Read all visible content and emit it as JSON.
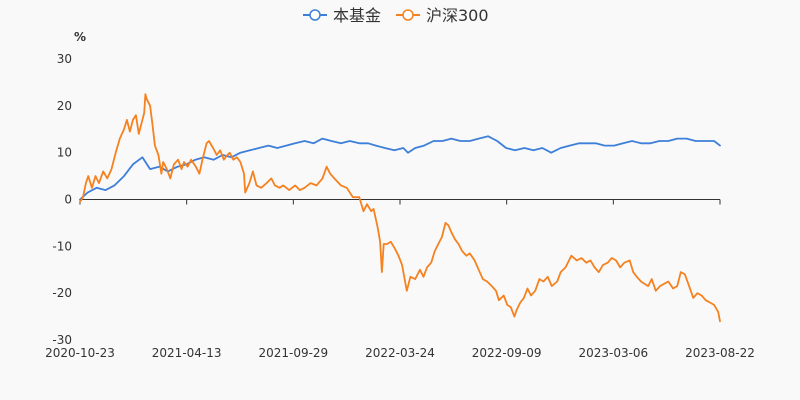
{
  "chart_data": {
    "type": "line",
    "title": "",
    "unit": "%",
    "ylim": [
      -30,
      30
    ],
    "yticks": [
      30,
      20,
      10,
      0,
      -10,
      -20,
      -30
    ],
    "xticks": [
      "2020-10-23",
      "2021-04-13",
      "2021-09-29",
      "2022-03-24",
      "2022-09-09",
      "2023-03-06",
      "2023-08-22"
    ],
    "legend_position": "top-center",
    "series": [
      {
        "name": "本基金",
        "color": "#3d7fd9",
        "points": [
          [
            "2020-10-23",
            0
          ],
          [
            "2020-11-05",
            1.5
          ],
          [
            "2020-11-20",
            2.5
          ],
          [
            "2020-12-05",
            2.0
          ],
          [
            "2020-12-20",
            3.0
          ],
          [
            "2021-01-05",
            5.0
          ],
          [
            "2021-01-20",
            7.5
          ],
          [
            "2021-02-05",
            9.0
          ],
          [
            "2021-02-18",
            6.5
          ],
          [
            "2021-03-05",
            7.0
          ],
          [
            "2021-03-20",
            6.0
          ],
          [
            "2021-04-05",
            7.0
          ],
          [
            "2021-04-20",
            7.5
          ],
          [
            "2021-05-05",
            8.5
          ],
          [
            "2021-05-20",
            9.0
          ],
          [
            "2021-06-05",
            8.5
          ],
          [
            "2021-06-20",
            9.5
          ],
          [
            "2021-07-05",
            9.0
          ],
          [
            "2021-07-20",
            10.0
          ],
          [
            "2021-08-05",
            10.5
          ],
          [
            "2021-08-20",
            11.0
          ],
          [
            "2021-09-05",
            11.5
          ],
          [
            "2021-09-20",
            11.0
          ],
          [
            "2021-10-05",
            11.5
          ],
          [
            "2021-10-20",
            12.0
          ],
          [
            "2021-11-05",
            12.5
          ],
          [
            "2021-11-20",
            12.0
          ],
          [
            "2021-12-05",
            13.0
          ],
          [
            "2021-12-20",
            12.5
          ],
          [
            "2022-01-05",
            12.0
          ],
          [
            "2022-01-20",
            12.5
          ],
          [
            "2022-02-05",
            12.0
          ],
          [
            "2022-02-20",
            12.0
          ],
          [
            "2022-03-05",
            11.5
          ],
          [
            "2022-03-20",
            11.0
          ],
          [
            "2022-04-05",
            10.5
          ],
          [
            "2022-04-20",
            11.0
          ],
          [
            "2022-04-28",
            10.0
          ],
          [
            "2022-05-10",
            11.0
          ],
          [
            "2022-05-25",
            11.5
          ],
          [
            "2022-06-10",
            12.5
          ],
          [
            "2022-06-25",
            12.5
          ],
          [
            "2022-07-10",
            13.0
          ],
          [
            "2022-07-25",
            12.5
          ],
          [
            "2022-08-10",
            12.5
          ],
          [
            "2022-08-25",
            13.0
          ],
          [
            "2022-09-10",
            13.5
          ],
          [
            "2022-09-25",
            12.5
          ],
          [
            "2022-10-10",
            11.0
          ],
          [
            "2022-10-25",
            10.5
          ],
          [
            "2022-11-10",
            11.0
          ],
          [
            "2022-11-25",
            10.5
          ],
          [
            "2022-12-10",
            11.0
          ],
          [
            "2022-12-25",
            10.0
          ],
          [
            "2023-01-10",
            11.0
          ],
          [
            "2023-01-25",
            11.5
          ],
          [
            "2023-02-10",
            12.0
          ],
          [
            "2023-02-25",
            12.0
          ],
          [
            "2023-03-10",
            12.0
          ],
          [
            "2023-03-25",
            11.5
          ],
          [
            "2023-04-10",
            11.5
          ],
          [
            "2023-04-25",
            12.0
          ],
          [
            "2023-05-10",
            12.5
          ],
          [
            "2023-05-25",
            12.0
          ],
          [
            "2023-06-10",
            12.0
          ],
          [
            "2023-06-25",
            12.5
          ],
          [
            "2023-07-10",
            12.5
          ],
          [
            "2023-07-25",
            13.0
          ],
          [
            "2023-08-10",
            13.0
          ],
          [
            "2023-08-25",
            12.5
          ],
          [
            "2023-09-10",
            12.5
          ],
          [
            "2023-09-25",
            12.5
          ],
          [
            "2023-10-05",
            11.5
          ]
        ]
      },
      {
        "name": "沪深300",
        "color": "#f5811f",
        "points": [
          [
            "2020-10-23",
            -0.5
          ],
          [
            "2020-10-28",
            0.5
          ],
          [
            "2020-11-02",
            3.5
          ],
          [
            "2020-11-06",
            5.0
          ],
          [
            "2020-11-12",
            2.5
          ],
          [
            "2020-11-18",
            5.0
          ],
          [
            "2020-11-24",
            3.5
          ],
          [
            "2020-12-01",
            6.0
          ],
          [
            "2020-12-08",
            4.5
          ],
          [
            "2020-12-15",
            6.5
          ],
          [
            "2020-12-22",
            10.0
          ],
          [
            "2020-12-29",
            13.0
          ],
          [
            "2021-01-05",
            15.0
          ],
          [
            "2021-01-10",
            17.0
          ],
          [
            "2021-01-15",
            14.5
          ],
          [
            "2021-01-20",
            17.0
          ],
          [
            "2021-01-25",
            18.0
          ],
          [
            "2021-01-30",
            14.0
          ],
          [
            "2021-02-04",
            16.5
          ],
          [
            "2021-02-08",
            18.5
          ],
          [
            "2021-02-10",
            22.5
          ],
          [
            "2021-02-12",
            21.5
          ],
          [
            "2021-02-18",
            20.0
          ],
          [
            "2021-02-22",
            16.0
          ],
          [
            "2021-02-26",
            11.5
          ],
          [
            "2021-03-04",
            9.5
          ],
          [
            "2021-03-09",
            5.5
          ],
          [
            "2021-03-12",
            8.0
          ],
          [
            "2021-03-18",
            6.5
          ],
          [
            "2021-03-24",
            4.5
          ],
          [
            "2021-03-30",
            7.5
          ],
          [
            "2021-04-06",
            8.5
          ],
          [
            "2021-04-12",
            6.5
          ],
          [
            "2021-04-16",
            8.0
          ],
          [
            "2021-04-22",
            7.0
          ],
          [
            "2021-04-28",
            8.5
          ],
          [
            "2021-05-06",
            7.0
          ],
          [
            "2021-05-12",
            5.5
          ],
          [
            "2021-05-18",
            9.0
          ],
          [
            "2021-05-24",
            12.0
          ],
          [
            "2021-05-28",
            12.5
          ],
          [
            "2021-06-04",
            11.0
          ],
          [
            "2021-06-10",
            9.5
          ],
          [
            "2021-06-16",
            10.5
          ],
          [
            "2021-06-22",
            8.5
          ],
          [
            "2021-06-28",
            9.5
          ],
          [
            "2021-07-02",
            10.0
          ],
          [
            "2021-07-08",
            8.5
          ],
          [
            "2021-07-14",
            9.0
          ],
          [
            "2021-07-20",
            8.0
          ],
          [
            "2021-07-26",
            5.5
          ],
          [
            "2021-07-28",
            1.5
          ],
          [
            "2021-08-04",
            3.5
          ],
          [
            "2021-08-10",
            6.0
          ],
          [
            "2021-08-16",
            3.0
          ],
          [
            "2021-08-24",
            2.5
          ],
          [
            "2021-09-02",
            3.5
          ],
          [
            "2021-09-10",
            4.5
          ],
          [
            "2021-09-16",
            3.0
          ],
          [
            "2021-09-24",
            2.5
          ],
          [
            "2021-09-30",
            3.0
          ],
          [
            "2021-10-10",
            2.0
          ],
          [
            "2021-10-20",
            3.0
          ],
          [
            "2021-10-28",
            2.0
          ],
          [
            "2021-11-05",
            2.5
          ],
          [
            "2021-11-15",
            3.5
          ],
          [
            "2021-11-25",
            3.0
          ],
          [
            "2021-12-05",
            4.5
          ],
          [
            "2021-12-12",
            7.0
          ],
          [
            "2021-12-18",
            5.5
          ],
          [
            "2021-12-25",
            4.5
          ],
          [
            "2022-01-05",
            3.0
          ],
          [
            "2022-01-15",
            2.5
          ],
          [
            "2022-01-25",
            0.5
          ],
          [
            "2022-02-05",
            0.5
          ],
          [
            "2022-02-12",
            -2.5
          ],
          [
            "2022-02-18",
            -1.0
          ],
          [
            "2022-02-25",
            -2.5
          ],
          [
            "2022-03-01",
            -2.0
          ],
          [
            "2022-03-08",
            -6.0
          ],
          [
            "2022-03-12",
            -9.0
          ],
          [
            "2022-03-15",
            -15.5
          ],
          [
            "2022-03-18",
            -9.5
          ],
          [
            "2022-03-24",
            -9.5
          ],
          [
            "2022-03-30",
            -9.0
          ],
          [
            "2022-04-06",
            -10.5
          ],
          [
            "2022-04-12",
            -12.0
          ],
          [
            "2022-04-18",
            -14.0
          ],
          [
            "2022-04-26",
            -19.5
          ],
          [
            "2022-05-02",
            -16.5
          ],
          [
            "2022-05-10",
            -17.0
          ],
          [
            "2022-05-18",
            -15.0
          ],
          [
            "2022-05-24",
            -16.5
          ],
          [
            "2022-05-30",
            -14.5
          ],
          [
            "2022-06-06",
            -13.5
          ],
          [
            "2022-06-12",
            -11.0
          ],
          [
            "2022-06-18",
            -9.5
          ],
          [
            "2022-06-24",
            -8.0
          ],
          [
            "2022-06-30",
            -5.0
          ],
          [
            "2022-07-05",
            -5.5
          ],
          [
            "2022-07-10",
            -7.0
          ],
          [
            "2022-07-16",
            -8.5
          ],
          [
            "2022-07-22",
            -9.5
          ],
          [
            "2022-07-28",
            -11.0
          ],
          [
            "2022-08-04",
            -12.0
          ],
          [
            "2022-08-10",
            -11.5
          ],
          [
            "2022-08-18",
            -13.0
          ],
          [
            "2022-08-25",
            -15.0
          ],
          [
            "2022-09-01",
            -17.0
          ],
          [
            "2022-09-08",
            -17.5
          ],
          [
            "2022-09-16",
            -18.5
          ],
          [
            "2022-09-23",
            -19.5
          ],
          [
            "2022-09-28",
            -21.5
          ],
          [
            "2022-10-06",
            -20.5
          ],
          [
            "2022-10-12",
            -22.5
          ],
          [
            "2022-10-18",
            -23.0
          ],
          [
            "2022-10-24",
            -25.0
          ],
          [
            "2022-10-28",
            -23.5
          ],
          [
            "2022-11-03",
            -22.0
          ],
          [
            "2022-11-09",
            -21.0
          ],
          [
            "2022-11-15",
            -19.0
          ],
          [
            "2022-11-21",
            -20.5
          ],
          [
            "2022-11-28",
            -19.5
          ],
          [
            "2022-12-05",
            -17.0
          ],
          [
            "2022-12-12",
            -17.5
          ],
          [
            "2022-12-19",
            -16.5
          ],
          [
            "2022-12-26",
            -18.5
          ],
          [
            "2023-01-04",
            -17.5
          ],
          [
            "2023-01-10",
            -15.5
          ],
          [
            "2023-01-18",
            -14.5
          ],
          [
            "2023-01-28",
            -12.0
          ],
          [
            "2023-02-06",
            -13.0
          ],
          [
            "2023-02-14",
            -12.5
          ],
          [
            "2023-02-22",
            -13.5
          ],
          [
            "2023-03-01",
            -13.0
          ],
          [
            "2023-03-08",
            -14.5
          ],
          [
            "2023-03-15",
            -15.5
          ],
          [
            "2023-03-22",
            -14.0
          ],
          [
            "2023-03-30",
            -13.5
          ],
          [
            "2023-04-06",
            -12.5
          ],
          [
            "2023-04-13",
            -13.0
          ],
          [
            "2023-04-20",
            -14.5
          ],
          [
            "2023-04-27",
            -13.5
          ],
          [
            "2023-05-06",
            -13.0
          ],
          [
            "2023-05-12",
            -15.5
          ],
          [
            "2023-05-18",
            -16.5
          ],
          [
            "2023-05-25",
            -17.5
          ],
          [
            "2023-05-31",
            -18.0
          ],
          [
            "2023-06-06",
            -18.5
          ],
          [
            "2023-06-12",
            -17.0
          ],
          [
            "2023-06-19",
            -19.5
          ],
          [
            "2023-06-26",
            -18.5
          ],
          [
            "2023-07-03",
            -18.0
          ],
          [
            "2023-07-10",
            -17.5
          ],
          [
            "2023-07-18",
            -19.0
          ],
          [
            "2023-07-25",
            -18.5
          ],
          [
            "2023-07-31",
            -15.5
          ],
          [
            "2023-08-07",
            -16.0
          ],
          [
            "2023-08-14",
            -18.5
          ],
          [
            "2023-08-21",
            -21.0
          ],
          [
            "2023-08-28",
            -20.0
          ],
          [
            "2023-09-04",
            -20.5
          ],
          [
            "2023-09-11",
            -21.5
          ],
          [
            "2023-09-18",
            -22.0
          ],
          [
            "2023-09-25",
            -22.5
          ],
          [
            "2023-10-02",
            -24.0
          ],
          [
            "2023-10-05",
            -26.0
          ]
        ]
      }
    ]
  }
}
